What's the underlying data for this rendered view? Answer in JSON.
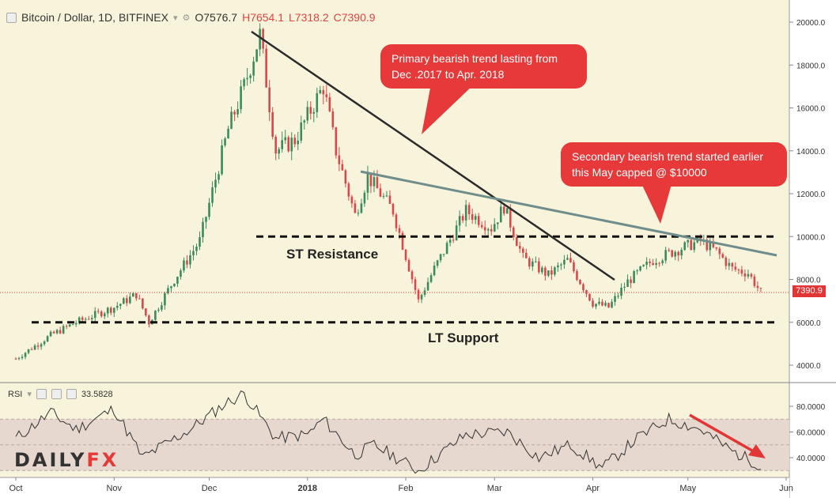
{
  "header": {
    "symbol": "Bitcoin / Dollar, 1D, BITFINEX",
    "open": "O7576.7",
    "high": "H7654.1",
    "low": "L7318.2",
    "close": "C7390.9"
  },
  "rsi_header": {
    "name": "RSI",
    "value": "33.5828"
  },
  "callouts": {
    "primary": "Primary bearish trend lasting from Dec .2017 to Apr. 2018",
    "secondary": "Secondary bearish trend started earlier this May capped @ $10000"
  },
  "labels": {
    "resistance": "ST Resistance",
    "support": "LT Support"
  },
  "price_tag": "7390.9",
  "logo": {
    "part1": "DAILY",
    "part2": "FX"
  },
  "colors": {
    "up": "#3d8a5b",
    "down": "#d44a4a",
    "trend1": "#2a2a2a",
    "trend2": "#6f8d8a",
    "callout": "#e8393a",
    "bg": "#f8f4dc"
  },
  "chart_data": [
    {
      "type": "candlestick",
      "title": "Bitcoin / Dollar, 1D, BITFINEX",
      "ylim": [
        3600,
        20300
      ],
      "y_ticks": [
        "20000.0",
        "18000.0",
        "16000.0",
        "14000.0",
        "12000.0",
        "10000.0",
        "8000.0",
        "6000.0",
        "4000.0"
      ],
      "x_ticks": [
        "Oct",
        "Nov",
        "Dec",
        "2018",
        "Feb",
        "Mar",
        "Apr",
        "May",
        "Jun"
      ],
      "price_keypoints": [
        [
          "2017-10-01",
          4300
        ],
        [
          "2017-10-12",
          5400
        ],
        [
          "2017-10-20",
          6000
        ],
        [
          "2017-11-01",
          6700
        ],
        [
          "2017-11-08",
          7300
        ],
        [
          "2017-11-12",
          6000
        ],
        [
          "2017-11-20",
          8000
        ],
        [
          "2017-11-28",
          9800
        ],
        [
          "2017-12-07",
          15000
        ],
        [
          "2017-12-12",
          17000
        ],
        [
          "2017-12-17",
          19400
        ],
        [
          "2017-12-22",
          14000
        ],
        [
          "2017-12-28",
          14500
        ],
        [
          "2018-01-06",
          17000
        ],
        [
          "2018-01-10",
          14000
        ],
        [
          "2018-01-16",
          11000
        ],
        [
          "2018-01-20",
          12800
        ],
        [
          "2018-01-28",
          11200
        ],
        [
          "2018-02-05",
          7000
        ],
        [
          "2018-02-10",
          8500
        ],
        [
          "2018-02-20",
          11200
        ],
        [
          "2018-02-28",
          10400
        ],
        [
          "2018-03-04",
          11400
        ],
        [
          "2018-03-10",
          9000
        ],
        [
          "2018-03-18",
          8200
        ],
        [
          "2018-03-24",
          8900
        ],
        [
          "2018-04-01",
          6900
        ],
        [
          "2018-04-06",
          6700
        ],
        [
          "2018-04-12",
          7900
        ],
        [
          "2018-04-20",
          8900
        ],
        [
          "2018-04-28",
          9400
        ],
        [
          "2018-05-05",
          9800
        ],
        [
          "2018-05-10",
          9300
        ],
        [
          "2018-05-15",
          8500
        ],
        [
          "2018-05-20",
          8300
        ],
        [
          "2018-05-24",
          7400
        ]
      ],
      "levels": [
        {
          "name": "ST Resistance",
          "value": 10000
        },
        {
          "name": "LT Support",
          "value": 6000
        }
      ],
      "last_price": 7390.9
    },
    {
      "type": "line",
      "title": "RSI",
      "last_value": 33.5828,
      "ylim": [
        25,
        95
      ],
      "y_ticks": [
        "80.0000",
        "60.0000",
        "40.0000"
      ],
      "band": [
        30,
        70
      ],
      "rsi_keypoints": [
        [
          "2017-10-01",
          55
        ],
        [
          "2017-10-12",
          75
        ],
        [
          "2017-10-20",
          62
        ],
        [
          "2017-11-01",
          78
        ],
        [
          "2017-11-10",
          40
        ],
        [
          "2017-11-25",
          62
        ],
        [
          "2017-12-06",
          82
        ],
        [
          "2017-12-12",
          90
        ],
        [
          "2017-12-22",
          55
        ],
        [
          "2018-01-01",
          58
        ],
        [
          "2018-01-06",
          70
        ],
        [
          "2018-01-16",
          42
        ],
        [
          "2018-01-22",
          50
        ],
        [
          "2018-02-05",
          30
        ],
        [
          "2018-02-20",
          58
        ],
        [
          "2018-03-05",
          60
        ],
        [
          "2018-03-15",
          40
        ],
        [
          "2018-03-25",
          50
        ],
        [
          "2018-04-04",
          32
        ],
        [
          "2018-04-15",
          55
        ],
        [
          "2018-04-25",
          70
        ],
        [
          "2018-05-05",
          62
        ],
        [
          "2018-05-15",
          45
        ],
        [
          "2018-05-24",
          34
        ]
      ]
    }
  ]
}
